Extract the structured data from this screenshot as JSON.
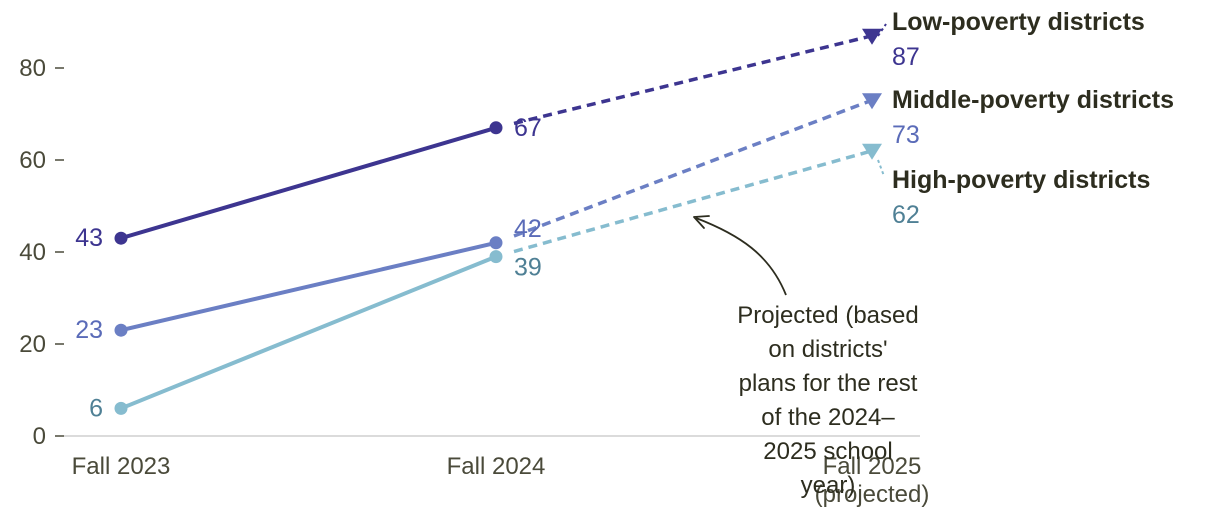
{
  "chart_data": {
    "type": "line",
    "categories": [
      "Fall 2023",
      "Fall 2024",
      "Fall 2025\n(projected)"
    ],
    "yticks": [
      0,
      20,
      40,
      60,
      80
    ],
    "ylim": [
      0,
      90
    ],
    "grid": false,
    "series": [
      {
        "name": "Low-poverty districts",
        "values": [
          43,
          67,
          87
        ],
        "labels": [
          "43",
          "67",
          "87"
        ],
        "color": "#3d3590",
        "label_color": "#3d3590"
      },
      {
        "name": "Middle-poverty districts",
        "values": [
          23,
          42,
          73
        ],
        "labels": [
          "23",
          "42",
          "73"
        ],
        "color": "#6b7fc4",
        "label_color": "#5a6bb8"
      },
      {
        "name": "High-poverty districts",
        "values": [
          6,
          39,
          62
        ],
        "labels": [
          "6",
          "39",
          "62"
        ],
        "color": "#86bccf",
        "label_color": "#4f8095"
      }
    ],
    "annotation": "Projected (based on districts' plans for the rest of the 2024–2025 school year)",
    "annotation_lines": [
      "Projected (based",
      "on districts'",
      "plans for the rest",
      "of the 2024–",
      "2025 school",
      "year)"
    ]
  }
}
